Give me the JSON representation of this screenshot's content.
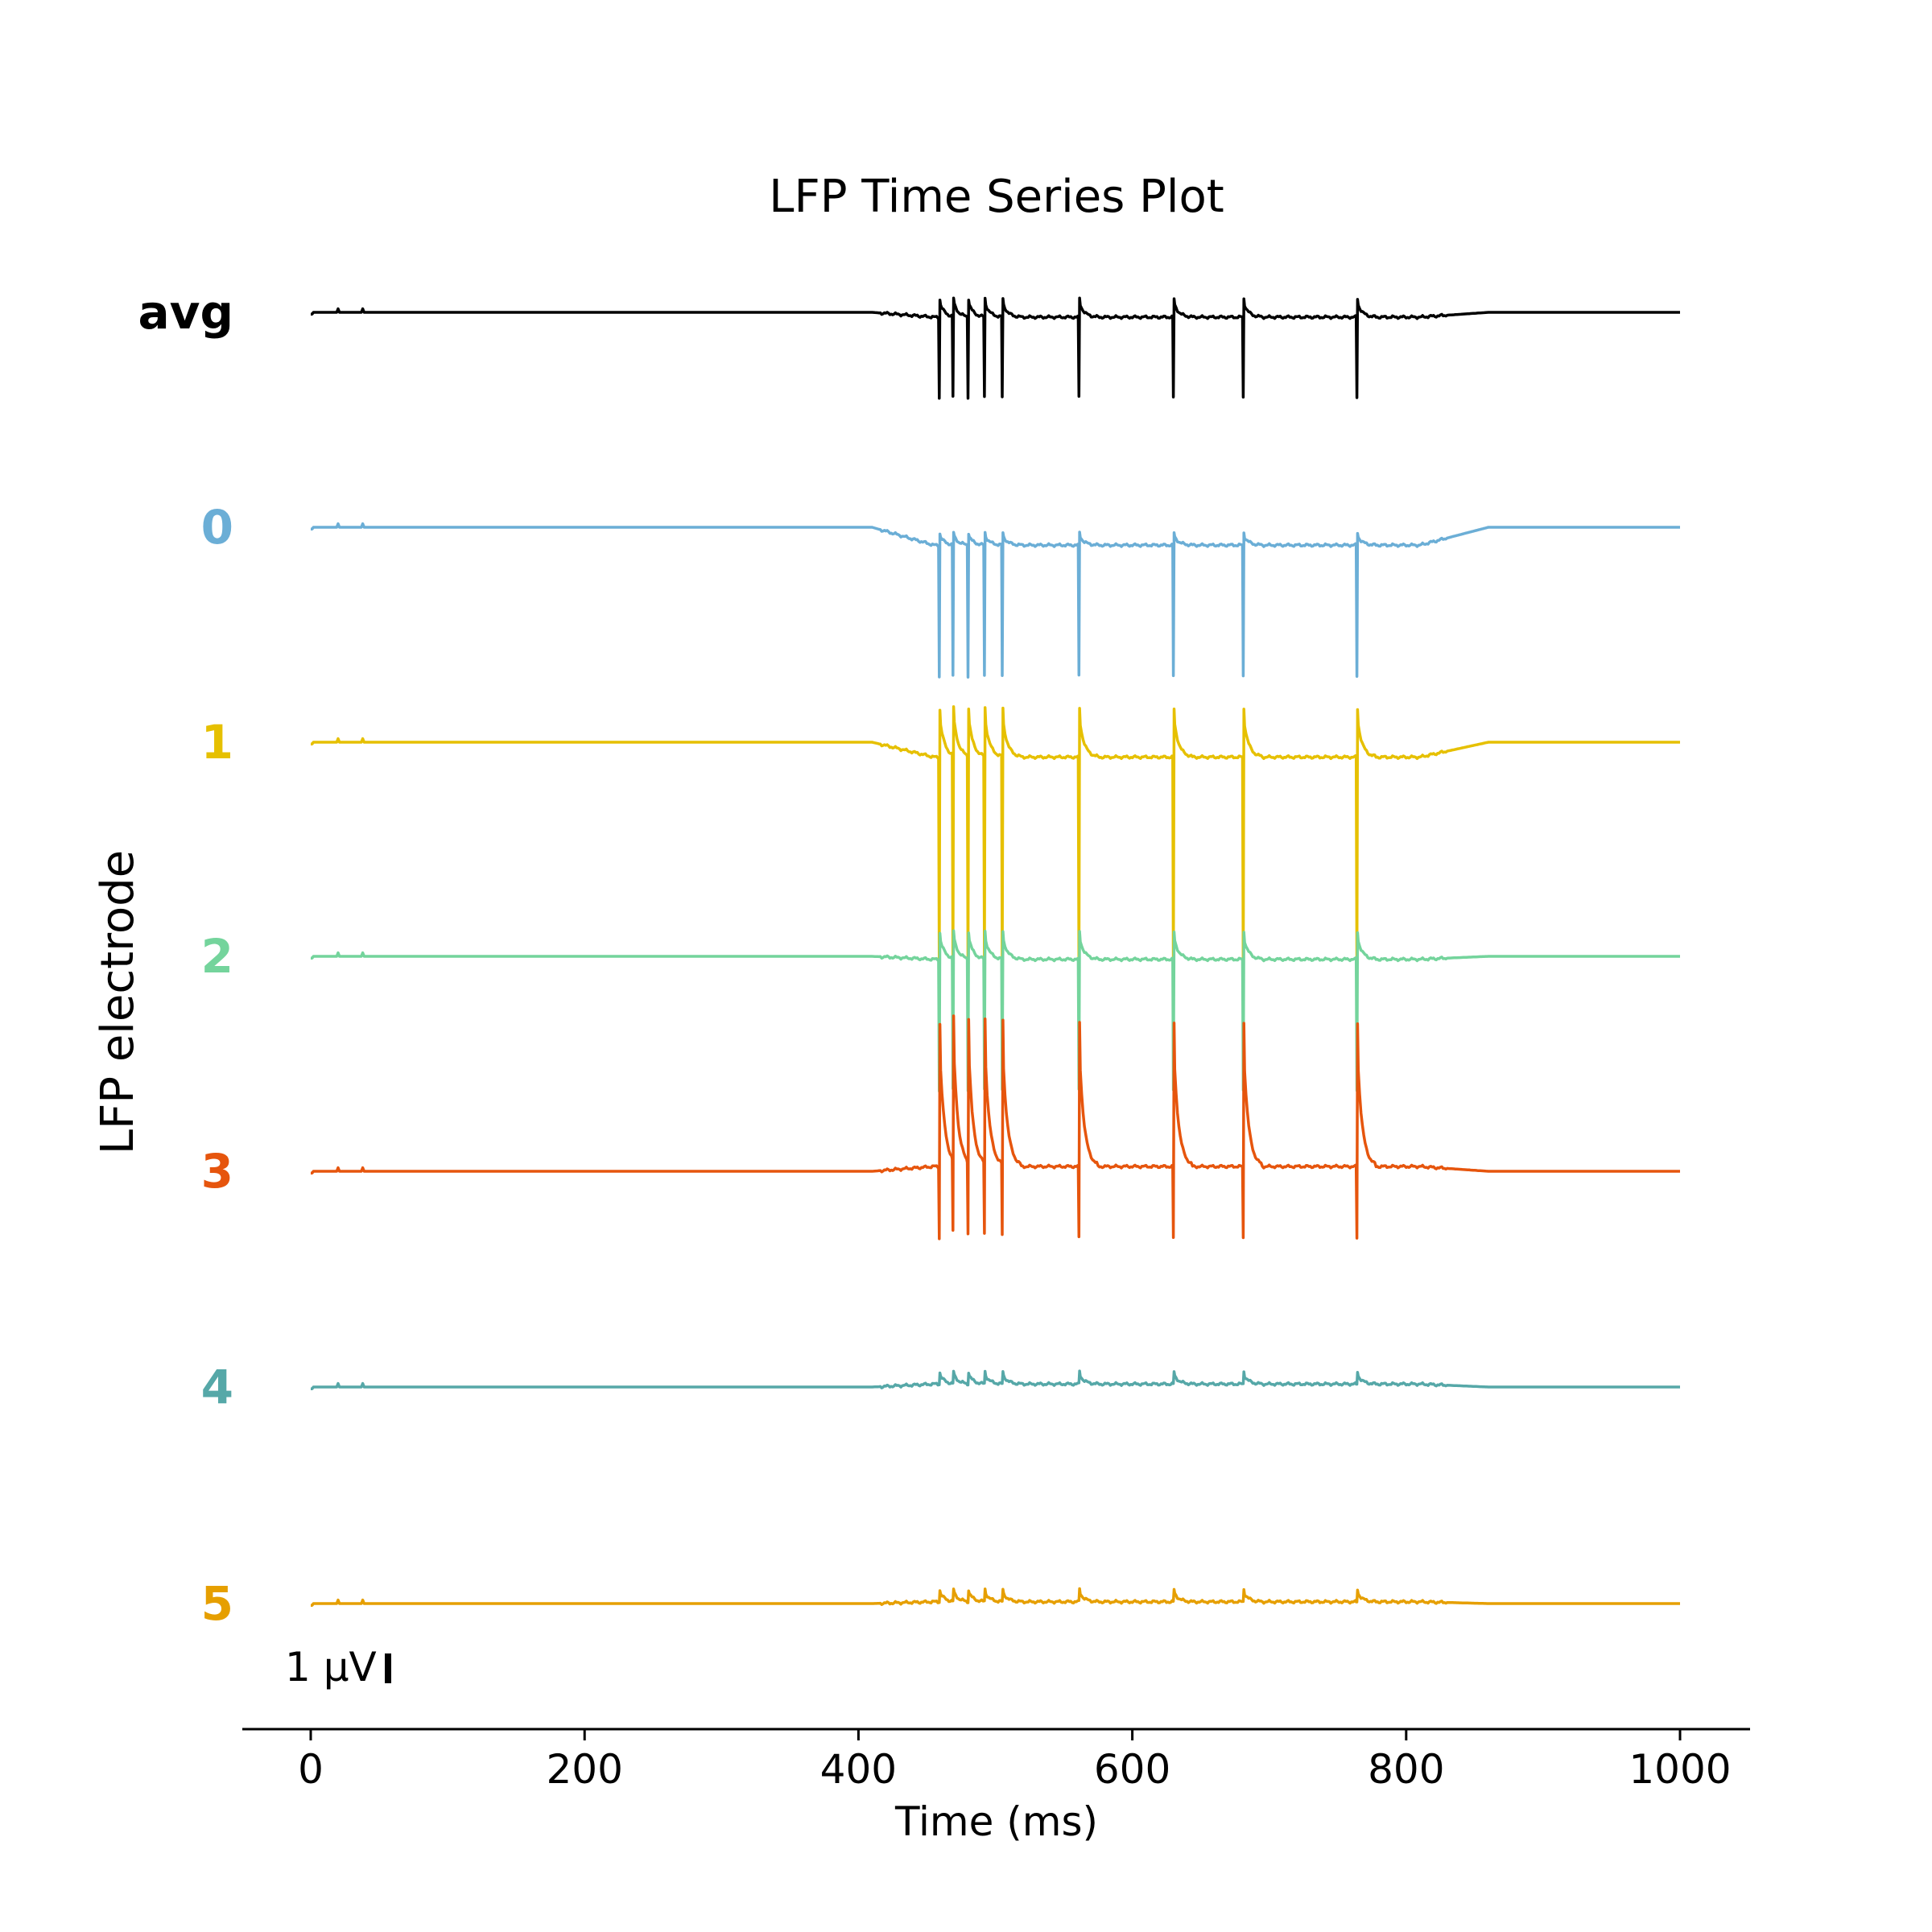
{
  "chart_data": {
    "type": "line",
    "title": "LFP Time Series Plot",
    "xlabel": "Time (ms)",
    "ylabel": "LFP electrode",
    "xlim": [
      0,
      1000
    ],
    "xticks": [
      0,
      200,
      400,
      600,
      800,
      1000
    ],
    "xtick_labels": [
      "0",
      "200",
      "400",
      "600",
      "800",
      "1000"
    ],
    "grid": false,
    "scale_bar": {
      "value": 1,
      "label": "1 μV"
    },
    "spike_times_ms": [
      459,
      469,
      480,
      492,
      505,
      561,
      630,
      681,
      764
    ],
    "series": [
      {
        "name": "avg",
        "color": "#000000",
        "baseline_uv": 0.0,
        "spike_down_uv": -1.35,
        "spike_up_uv": 0.3,
        "plateau_uv": -0.08,
        "bold_label": true
      },
      {
        "name": "0",
        "color": "#6baed6",
        "baseline_uv": 0.0,
        "spike_down_uv": -2.2,
        "spike_up_uv": 0.2,
        "plateau_uv": -0.3
      },
      {
        "name": "1",
        "color": "#e6c000",
        "baseline_uv": 0.0,
        "spike_down_uv": -3.6,
        "spike_up_uv": 0.8,
        "plateau_uv": -0.25
      },
      {
        "name": "2",
        "color": "#74d49c",
        "baseline_uv": 0.0,
        "spike_down_uv": -2.2,
        "spike_up_uv": 0.45,
        "plateau_uv": -0.05
      },
      {
        "name": "3",
        "color": "#e6550d",
        "baseline_uv": 0.0,
        "spike_down_uv": -1.2,
        "spike_up_uv": 2.4,
        "plateau_uv": 0.08
      },
      {
        "name": "4",
        "color": "#56a8a8",
        "baseline_uv": 0.0,
        "spike_down_uv": 0.0,
        "spike_up_uv": 0.2,
        "plateau_uv": 0.05
      },
      {
        "name": "5",
        "color": "#e69f00",
        "baseline_uv": 0.0,
        "spike_down_uv": 0.0,
        "spike_up_uv": 0.2,
        "plateau_uv": 0.03
      }
    ]
  }
}
